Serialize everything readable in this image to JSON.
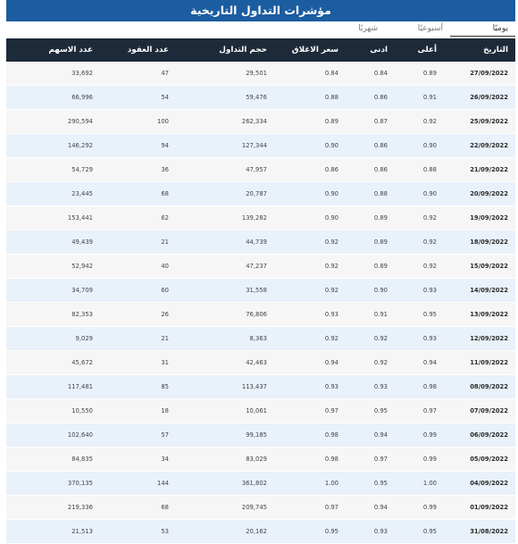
{
  "title": "مؤشرات التداول التاريخية",
  "tabs": [
    "يوميًا",
    "أسبوعيًا",
    "شهريًا"
  ],
  "columns": [
    "التاريخ",
    "أعلى",
    "ادنى",
    "سعر الاغلاق",
    "حجم التداول",
    "عدد العقود",
    "عدد الاسهم"
  ],
  "rows": [
    {
      "date": "27/09/2022",
      "high": "0.89",
      "low": "0.84",
      "close": "0.84",
      "volume": "29,501",
      "deals": "47",
      "shares": "33,692"
    },
    {
      "date": "26/09/2022",
      "high": "0.91",
      "low": "0.86",
      "close": "0.88",
      "volume": "59,476",
      "deals": "54",
      "shares": "66,996"
    },
    {
      "date": "25/09/2022",
      "high": "0.92",
      "low": "0.87",
      "close": "0.89",
      "volume": "262,334",
      "deals": "100",
      "shares": "290,594"
    },
    {
      "date": "22/09/2022",
      "high": "0.90",
      "low": "0.86",
      "close": "0.90",
      "volume": "127,344",
      "deals": "94",
      "shares": "146,292"
    },
    {
      "date": "21/09/2022",
      "high": "0.88",
      "low": "0.86",
      "close": "0.86",
      "volume": "47,957",
      "deals": "36",
      "shares": "54,729"
    },
    {
      "date": "20/09/2022",
      "high": "0.90",
      "low": "0.88",
      "close": "0.90",
      "volume": "20,787",
      "deals": "68",
      "shares": "23,445"
    },
    {
      "date": "19/09/2022",
      "high": "0.92",
      "low": "0.89",
      "close": "0.90",
      "volume": "139,282",
      "deals": "62",
      "shares": "153,441"
    },
    {
      "date": "18/09/2022",
      "high": "0.92",
      "low": "0.89",
      "close": "0.92",
      "volume": "44,739",
      "deals": "21",
      "shares": "49,439"
    },
    {
      "date": "15/09/2022",
      "high": "0.92",
      "low": "0.89",
      "close": "0.92",
      "volume": "47,237",
      "deals": "40",
      "shares": "52,942"
    },
    {
      "date": "14/09/2022",
      "high": "0.93",
      "low": "0.90",
      "close": "0.92",
      "volume": "31,558",
      "deals": "60",
      "shares": "34,709"
    },
    {
      "date": "13/09/2022",
      "high": "0.95",
      "low": "0.91",
      "close": "0.93",
      "volume": "76,806",
      "deals": "26",
      "shares": "82,353"
    },
    {
      "date": "12/09/2022",
      "high": "0.93",
      "low": "0.92",
      "close": "0.92",
      "volume": "8,363",
      "deals": "21",
      "shares": "9,029"
    },
    {
      "date": "11/09/2022",
      "high": "0.94",
      "low": "0.92",
      "close": "0.94",
      "volume": "42,463",
      "deals": "31",
      "shares": "45,672"
    },
    {
      "date": "08/09/2022",
      "high": "0.98",
      "low": "0.93",
      "close": "0.93",
      "volume": "113,437",
      "deals": "85",
      "shares": "117,481"
    },
    {
      "date": "07/09/2022",
      "high": "0.97",
      "low": "0.95",
      "close": "0.97",
      "volume": "10,061",
      "deals": "18",
      "shares": "10,550"
    },
    {
      "date": "06/09/2022",
      "high": "0.99",
      "low": "0.94",
      "close": "0.98",
      "volume": "99,185",
      "deals": "57",
      "shares": "102,640"
    },
    {
      "date": "05/09/2022",
      "high": "0.99",
      "low": "0.97",
      "close": "0.98",
      "volume": "83,029",
      "deals": "34",
      "shares": "84,835"
    },
    {
      "date": "04/09/2022",
      "high": "1.00",
      "low": "0.95",
      "close": "1.00",
      "volume": "361,802",
      "deals": "144",
      "shares": "370,135"
    },
    {
      "date": "01/09/2022",
      "high": "0.99",
      "low": "0.94",
      "close": "0.97",
      "volume": "209,745",
      "deals": "68",
      "shares": "219,336"
    },
    {
      "date": "31/08/2022",
      "high": "0.95",
      "low": "0.93",
      "close": "0.95",
      "volume": "20,162",
      "deals": "53",
      "shares": "21,513"
    }
  ],
  "colors": {
    "title_bg": "#1b5da0",
    "header_bg": "#1d2a3a",
    "row_odd": "#f6f6f7",
    "row_even": "#e9f1fa"
  }
}
